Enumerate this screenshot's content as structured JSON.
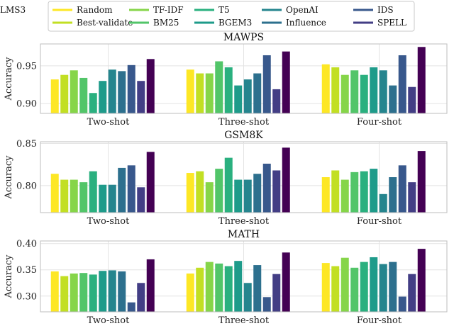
{
  "legend": {
    "entries": [
      {
        "name": "Random",
        "color": "#fde725"
      },
      {
        "name": "Best-validate",
        "color": "#c2df23"
      },
      {
        "name": "TF-IDF",
        "color": "#86d549"
      },
      {
        "name": "BM25",
        "color": "#52c569"
      },
      {
        "name": "T5",
        "color": "#2ab07f"
      },
      {
        "name": "BGEM3",
        "color": "#1e9b8a"
      },
      {
        "name": "OpenAI",
        "color": "#25858e"
      },
      {
        "name": "Influence",
        "color": "#2d708e"
      },
      {
        "name": "IDS",
        "color": "#38588c"
      },
      {
        "name": "SPELL",
        "color": "#433e85"
      },
      {
        "name": "LMS3",
        "color": "#440154"
      }
    ]
  },
  "chart_data": [
    {
      "type": "bar",
      "title": "MAWPS",
      "ylabel": "Accuracy",
      "categories": [
        "Two-shot",
        "Three-shot",
        "Four-shot"
      ],
      "ylim": [
        0.887,
        0.979
      ],
      "yticks": [
        0.9,
        0.95
      ],
      "ytick_labels": [
        "0.90",
        "0.95"
      ],
      "series": [
        {
          "name": "Random",
          "values": [
            0.932,
            0.945,
            0.952
          ]
        },
        {
          "name": "Best-validate",
          "values": [
            0.938,
            0.94,
            0.948
          ]
        },
        {
          "name": "TF-IDF",
          "values": [
            0.944,
            0.94,
            0.938
          ]
        },
        {
          "name": "BM25",
          "values": [
            0.934,
            0.956,
            0.944
          ]
        },
        {
          "name": "T5",
          "values": [
            0.914,
            0.948,
            0.938
          ]
        },
        {
          "name": "BGEM3",
          "values": [
            0.93,
            0.924,
            0.948
          ]
        },
        {
          "name": "OpenAI",
          "values": [
            0.945,
            0.932,
            0.944
          ]
        },
        {
          "name": "Influence",
          "values": [
            0.943,
            0.94,
            0.924
          ]
        },
        {
          "name": "IDS",
          "values": [
            0.951,
            0.964,
            0.964
          ]
        },
        {
          "name": "SPELL",
          "values": [
            0.93,
            0.919,
            0.922
          ]
        },
        {
          "name": "LMS3",
          "values": [
            0.959,
            0.969,
            0.975
          ]
        }
      ]
    },
    {
      "type": "bar",
      "title": "GSM8K",
      "ylabel": "Accuracy",
      "categories": [
        "Two-shot",
        "Three-shot",
        "Four-shot"
      ],
      "ylim": [
        0.768,
        0.852
      ],
      "yticks": [
        0.8,
        0.85
      ],
      "ytick_labels": [
        "0.80",
        "0.85"
      ],
      "series": [
        {
          "name": "Random",
          "values": [
            0.814,
            0.815,
            0.81
          ]
        },
        {
          "name": "Best-validate",
          "values": [
            0.807,
            0.817,
            0.818
          ]
        },
        {
          "name": "TF-IDF",
          "values": [
            0.807,
            0.804,
            0.807
          ]
        },
        {
          "name": "BM25",
          "values": [
            0.804,
            0.82,
            0.816
          ]
        },
        {
          "name": "T5",
          "values": [
            0.817,
            0.833,
            0.817
          ]
        },
        {
          "name": "BGEM3",
          "values": [
            0.801,
            0.807,
            0.82
          ]
        },
        {
          "name": "OpenAI",
          "values": [
            0.801,
            0.807,
            0.79
          ]
        },
        {
          "name": "Influence",
          "values": [
            0.821,
            0.814,
            0.81
          ]
        },
        {
          "name": "IDS",
          "values": [
            0.824,
            0.826,
            0.824
          ]
        },
        {
          "name": "SPELL",
          "values": [
            0.798,
            0.818,
            0.804
          ]
        },
        {
          "name": "LMS3",
          "values": [
            0.84,
            0.845,
            0.841
          ]
        }
      ]
    },
    {
      "type": "bar",
      "title": "MATH",
      "ylabel": "Accuracy",
      "categories": [
        "Two-shot",
        "Three-shot",
        "Four-shot"
      ],
      "ylim": [
        0.27,
        0.405
      ],
      "yticks": [
        0.3,
        0.35,
        0.4
      ],
      "ytick_labels": [
        "0.30",
        "0.35",
        "0.40"
      ],
      "series": [
        {
          "name": "Random",
          "values": [
            0.347,
            0.343,
            0.363
          ]
        },
        {
          "name": "Best-validate",
          "values": [
            0.338,
            0.354,
            0.357
          ]
        },
        {
          "name": "TF-IDF",
          "values": [
            0.343,
            0.365,
            0.373
          ]
        },
        {
          "name": "BM25",
          "values": [
            0.344,
            0.362,
            0.354
          ]
        },
        {
          "name": "T5",
          "values": [
            0.341,
            0.357,
            0.365
          ]
        },
        {
          "name": "BGEM3",
          "values": [
            0.348,
            0.367,
            0.374
          ]
        },
        {
          "name": "OpenAI",
          "values": [
            0.349,
            0.325,
            0.361
          ]
        },
        {
          "name": "Influence",
          "values": [
            0.347,
            0.359,
            0.365
          ]
        },
        {
          "name": "IDS",
          "values": [
            0.288,
            0.298,
            0.299
          ]
        },
        {
          "name": "SPELL",
          "values": [
            0.325,
            0.342,
            0.342
          ]
        },
        {
          "name": "LMS3",
          "values": [
            0.37,
            0.383,
            0.39
          ]
        }
      ]
    }
  ]
}
